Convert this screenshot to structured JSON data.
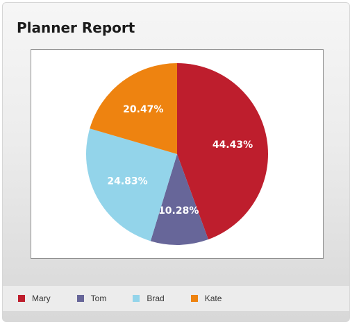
{
  "report": {
    "title": "Planner Report"
  },
  "chart_data": {
    "type": "pie",
    "title": "",
    "slices": [
      {
        "name": "Mary",
        "value": 44.43,
        "label": "44.43%",
        "color": "#be1e2d"
      },
      {
        "name": "Tom",
        "value": 10.28,
        "label": "10.28%",
        "color": "#676699"
      },
      {
        "name": "Brad",
        "value": 24.83,
        "label": "24.83%",
        "color": "#93d4ea"
      },
      {
        "name": "Kate",
        "value": 20.47,
        "label": "20.47%",
        "color": "#ee8310"
      }
    ],
    "legend_position": "bottom"
  }
}
